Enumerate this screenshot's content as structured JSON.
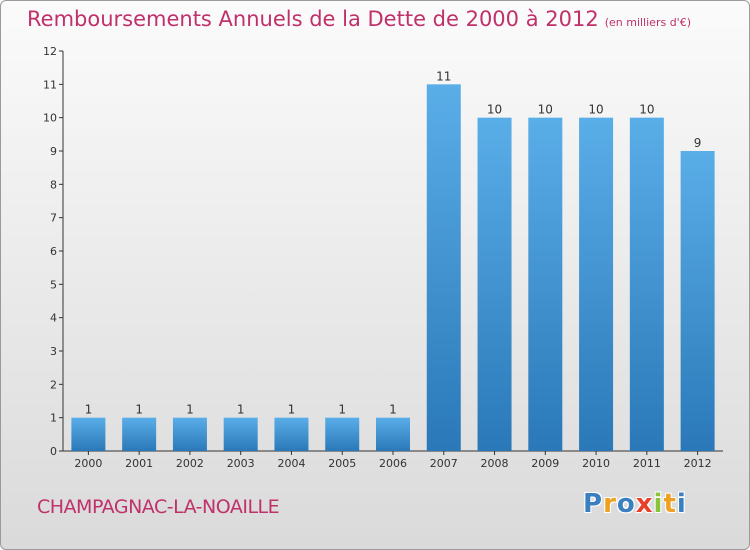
{
  "header": {
    "title": "Remboursements Annuels de la Dette de 2000 à 2012",
    "subtitle": "(en milliers d'€)"
  },
  "footer": {
    "commune": "CHAMPAGNAC-LA-NOAILLE",
    "logo_letters": [
      {
        "char": "P",
        "color": "#3a7fc0"
      },
      {
        "char": "r",
        "color": "#f0a020"
      },
      {
        "char": "o",
        "color": "#3a7fc0"
      },
      {
        "char": "x",
        "color": "#e8402a"
      },
      {
        "char": "i",
        "color": "#8ac23a"
      },
      {
        "char": "t",
        "color": "#f0a020"
      },
      {
        "char": "i",
        "color": "#3a7fc0"
      }
    ]
  },
  "colors": {
    "bar_top": "#5aaee8",
    "bar_bottom": "#2a78b8",
    "title": "#c0306a",
    "axis": "#333333"
  },
  "chart_data": {
    "type": "bar",
    "title": "Remboursements Annuels de la Dette de 2000 à 2012",
    "subtitle": "(en milliers d'€)",
    "categories": [
      "2000",
      "2001",
      "2002",
      "2003",
      "2004",
      "2005",
      "2006",
      "2007",
      "2008",
      "2009",
      "2010",
      "2011",
      "2012"
    ],
    "values": [
      1,
      1,
      1,
      1,
      1,
      1,
      1,
      11,
      10,
      10,
      10,
      10,
      9
    ],
    "ylim": [
      0,
      12
    ],
    "yticks": [
      0,
      1,
      2,
      3,
      4,
      5,
      6,
      7,
      8,
      9,
      10,
      11,
      12
    ],
    "grid": false,
    "legend": "none"
  }
}
